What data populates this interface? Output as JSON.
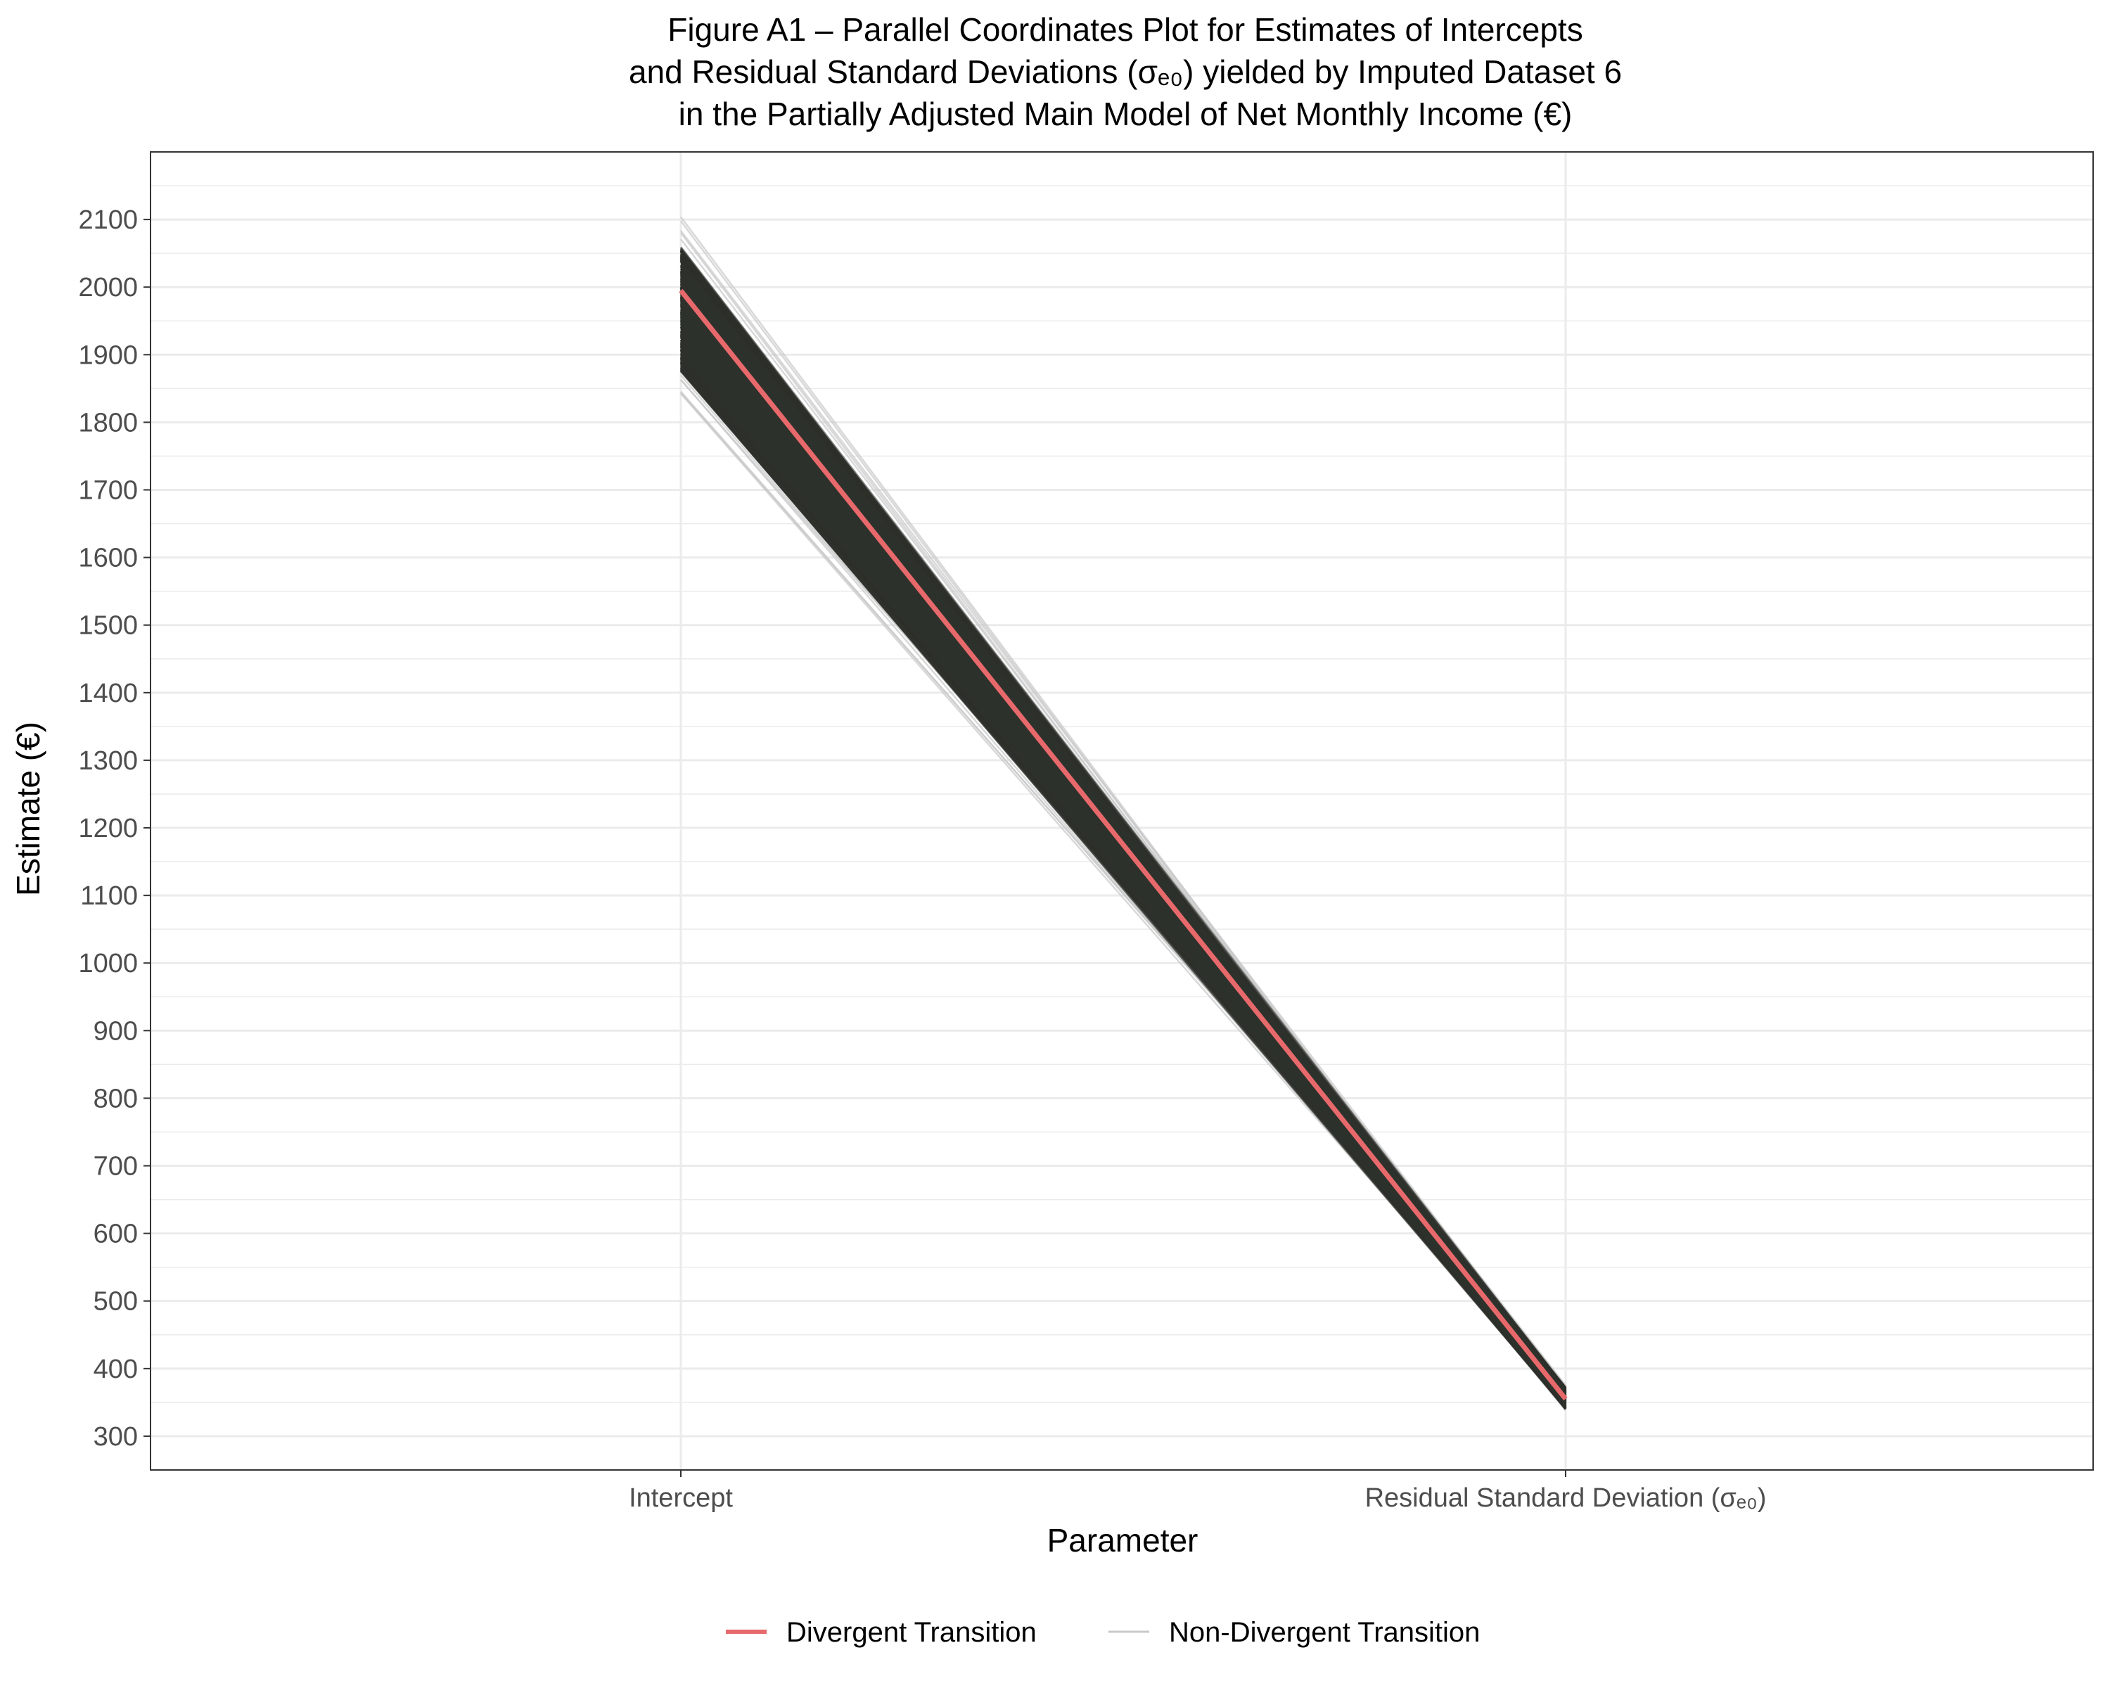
{
  "chart_data": {
    "type": "line",
    "title_lines": [
      "Figure A1 – Parallel Coordinates Plot for Estimates of Intercepts",
      "and Residual Standard Deviations (σₑ₀) yielded by Imputed Dataset 6",
      "in the Partially Adjusted Main Model of Net Monthly Income (€)"
    ],
    "xlabel": "Parameter",
    "ylabel": "Estimate (€)",
    "categories": [
      "Intercept",
      "Residual Standard Deviation (σₑ₀)"
    ],
    "ylim": [
      250,
      2200
    ],
    "yticks": [
      300,
      400,
      500,
      600,
      700,
      800,
      900,
      1000,
      1100,
      1200,
      1300,
      1400,
      1500,
      1600,
      1700,
      1800,
      1900,
      2000,
      2100
    ],
    "grid": true,
    "legend_position": "bottom",
    "series": [
      {
        "name": "Divergent Transition",
        "color": "#e8696b",
        "values": [
          1995,
          355
        ]
      },
      {
        "name": "Non-Divergent Transition",
        "color": "#c8c8c8",
        "draws": {
          "intercept_range": [
            1840,
            2105
          ],
          "sigma_range": [
            338,
            375
          ],
          "dense_core_intercept": [
            1875,
            2060
          ],
          "dense_core_sigma": [
            340,
            372
          ]
        }
      }
    ],
    "colors": {
      "dense_band": "#2d312c",
      "grid": "#ebebeb",
      "panel_border": "#333333"
    }
  }
}
